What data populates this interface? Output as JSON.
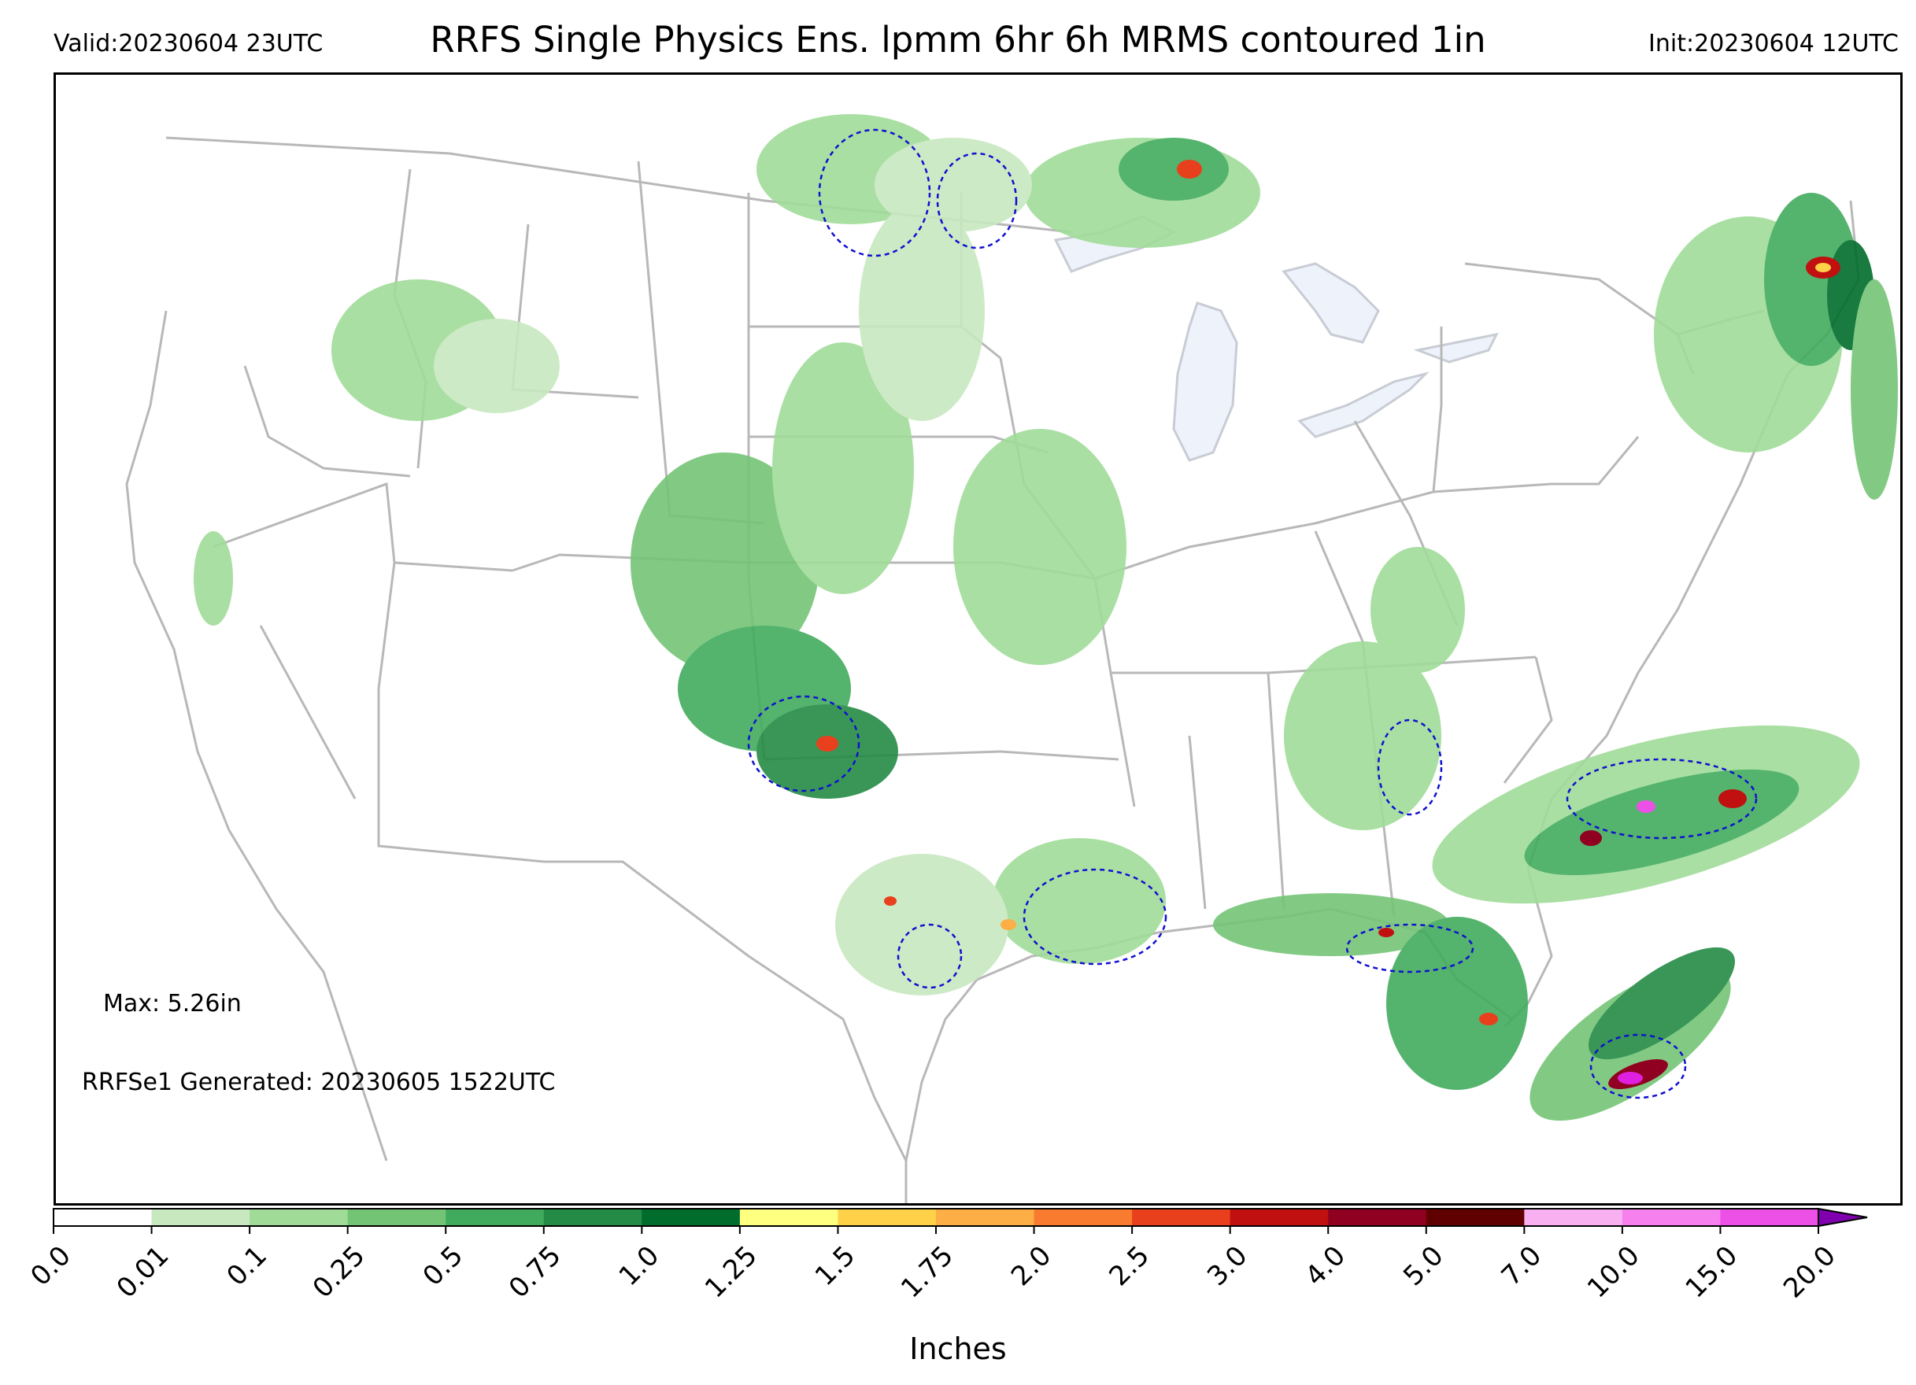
{
  "header": {
    "valid": "Valid:20230604 23UTC",
    "title": "RRFS Single Physics Ens. lpmm 6hr 6h MRMS contoured 1in",
    "init": "Init:20230604 12UTC"
  },
  "annotations": {
    "max": "Max: 5.26in",
    "generated": "RRFSe1 Generated: 20230605 1522UTC"
  },
  "colorbar": {
    "label": "Inches",
    "ticks": [
      "0.0",
      "0.01",
      "0.1",
      "0.25",
      "0.5",
      "0.75",
      "1.0",
      "1.25",
      "1.5",
      "1.75",
      "2.0",
      "2.5",
      "3.0",
      "4.0",
      "5.0",
      "7.0",
      "10.0",
      "15.0",
      "20.0"
    ],
    "colors": [
      "#ffffff",
      "#c8e8c0",
      "#a0dc98",
      "#74c476",
      "#41ab5d",
      "#238b45",
      "#006d2c",
      "#ffff80",
      "#fed148",
      "#fdae45",
      "#f87b30",
      "#e8401c",
      "#c01010",
      "#900020",
      "#600000",
      "#f8b0f0",
      "#f580ee",
      "#ec50e6",
      "#e020e0",
      "#c010d0",
      "#8000b0"
    ],
    "extend": "max"
  },
  "map": {
    "projection": "Lambert Conformal, CONUS",
    "field": "6h precipitation (green shades, local red/magenta maxima)",
    "contour": "MRMS 1 inch (blue dashed)",
    "colors": {
      "land_border": "#b8b8b8",
      "lakes": "#eef2fa",
      "contour": "#1010d0"
    }
  }
}
